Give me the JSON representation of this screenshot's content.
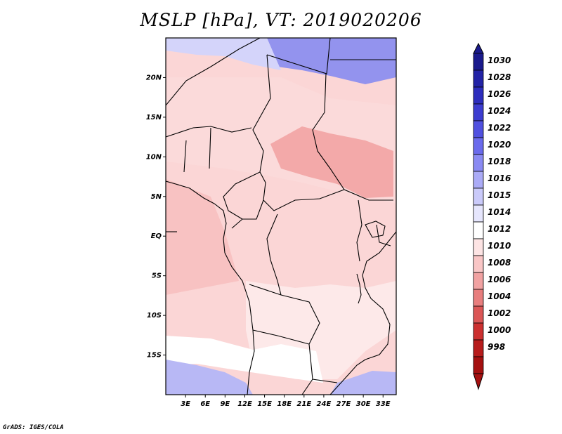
{
  "title": "MSLP [hPa], VT: 2019020206",
  "credit": "GrADS: IGES/COLA",
  "map": {
    "lat_labels": [
      "20N",
      "15N",
      "10N",
      "5N",
      "EQ",
      "5S",
      "10S",
      "15S"
    ],
    "lat_values": [
      20,
      15,
      10,
      5,
      0,
      -5,
      -10,
      -15
    ],
    "lon_labels": [
      "3E",
      "6E",
      "9E",
      "12E",
      "15E",
      "18E",
      "21E",
      "24E",
      "27E",
      "30E",
      "33E"
    ],
    "lon_values": [
      3,
      6,
      9,
      12,
      15,
      18,
      21,
      24,
      27,
      30,
      33
    ],
    "lon_range": [
      0,
      35
    ],
    "lat_range": [
      -20,
      25
    ]
  },
  "colorbar": {
    "labels": [
      "1030",
      "1028",
      "1026",
      "1024",
      "1022",
      "1020",
      "1018",
      "1016",
      "1015",
      "1014",
      "1012",
      "1010",
      "1008",
      "1006",
      "1004",
      "1002",
      "1000",
      "998"
    ],
    "colors": [
      "#1a1a8c",
      "#2323a6",
      "#2d2dbd",
      "#3c3cd0",
      "#5050e0",
      "#6a6aec",
      "#8a8af3",
      "#ababf7",
      "#cacafa",
      "#e6e6fd",
      "#ffffff",
      "#fde4e4",
      "#f9c6c6",
      "#f1a2a2",
      "#e87e7e",
      "#db5656",
      "#cc3030",
      "#b71c1c",
      "#a51010"
    ]
  },
  "regions": [
    {
      "name": "northeast-high",
      "color": "#9393ee"
    },
    {
      "name": "north-strip",
      "color": "#d4d4fa"
    },
    {
      "name": "sahel",
      "color": "#fbdada"
    },
    {
      "name": "central-low",
      "color": "#f3a9a9"
    },
    {
      "name": "atlantic",
      "color": "#f8c2c2"
    },
    {
      "name": "southern-africa",
      "color": "#fde9e9"
    },
    {
      "name": "south-white",
      "color": "#ffffff"
    },
    {
      "name": "southwest-high",
      "color": "#b8b8f5"
    }
  ]
}
